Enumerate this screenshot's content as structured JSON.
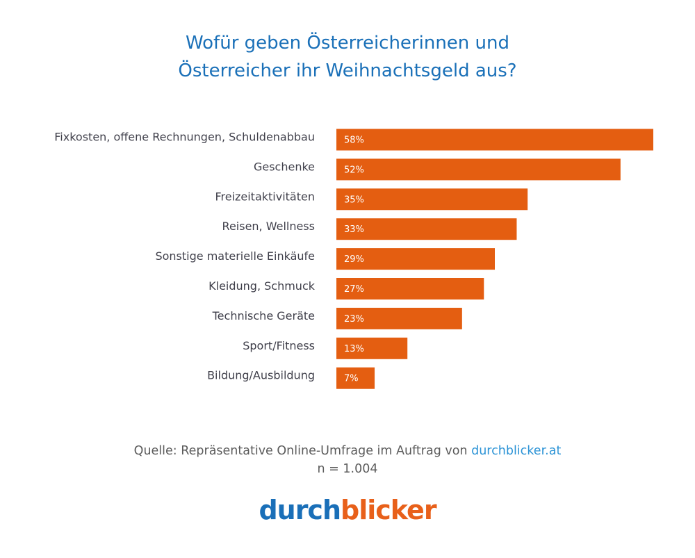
{
  "title": {
    "line1": "Wofür geben Österreicherinnen und",
    "line2": "Österreicher ihr Weihnachtsgeld aus?"
  },
  "chart_data": {
    "type": "bar",
    "orientation": "horizontal",
    "title": "Wofür geben Österreicherinnen und Österreicher ihr Weihnachtsgeld aus?",
    "categories": [
      "Fixkosten, offene Rechnungen, Schuldenabbau",
      "Geschenke",
      "Freizeitaktivitäten",
      "Reisen, Wellness",
      "Sonstige materielle Einkäufe",
      "Kleidung, Schmuck",
      "Technische Geräte",
      "Sport/Fitness",
      "Bildung/Ausbildung"
    ],
    "values": [
      58,
      52,
      35,
      33,
      29,
      27,
      23,
      13,
      7
    ],
    "data_labels": [
      "58%",
      "52%",
      "35%",
      "33%",
      "29%",
      "27%",
      "23%",
      "13%",
      "7%"
    ],
    "unit": "%",
    "xlim": [
      0,
      58
    ],
    "bar_color": "#e45e11",
    "label_color": "#3f3f4a"
  },
  "footer": {
    "source_prefix": "Quelle: Repräsentative Online-Umfrage im Auftrag von",
    "source_link": "durchblicker.at",
    "sample": "n = 1.004"
  },
  "logo": {
    "part1": "durch",
    "part2": "blicker"
  }
}
